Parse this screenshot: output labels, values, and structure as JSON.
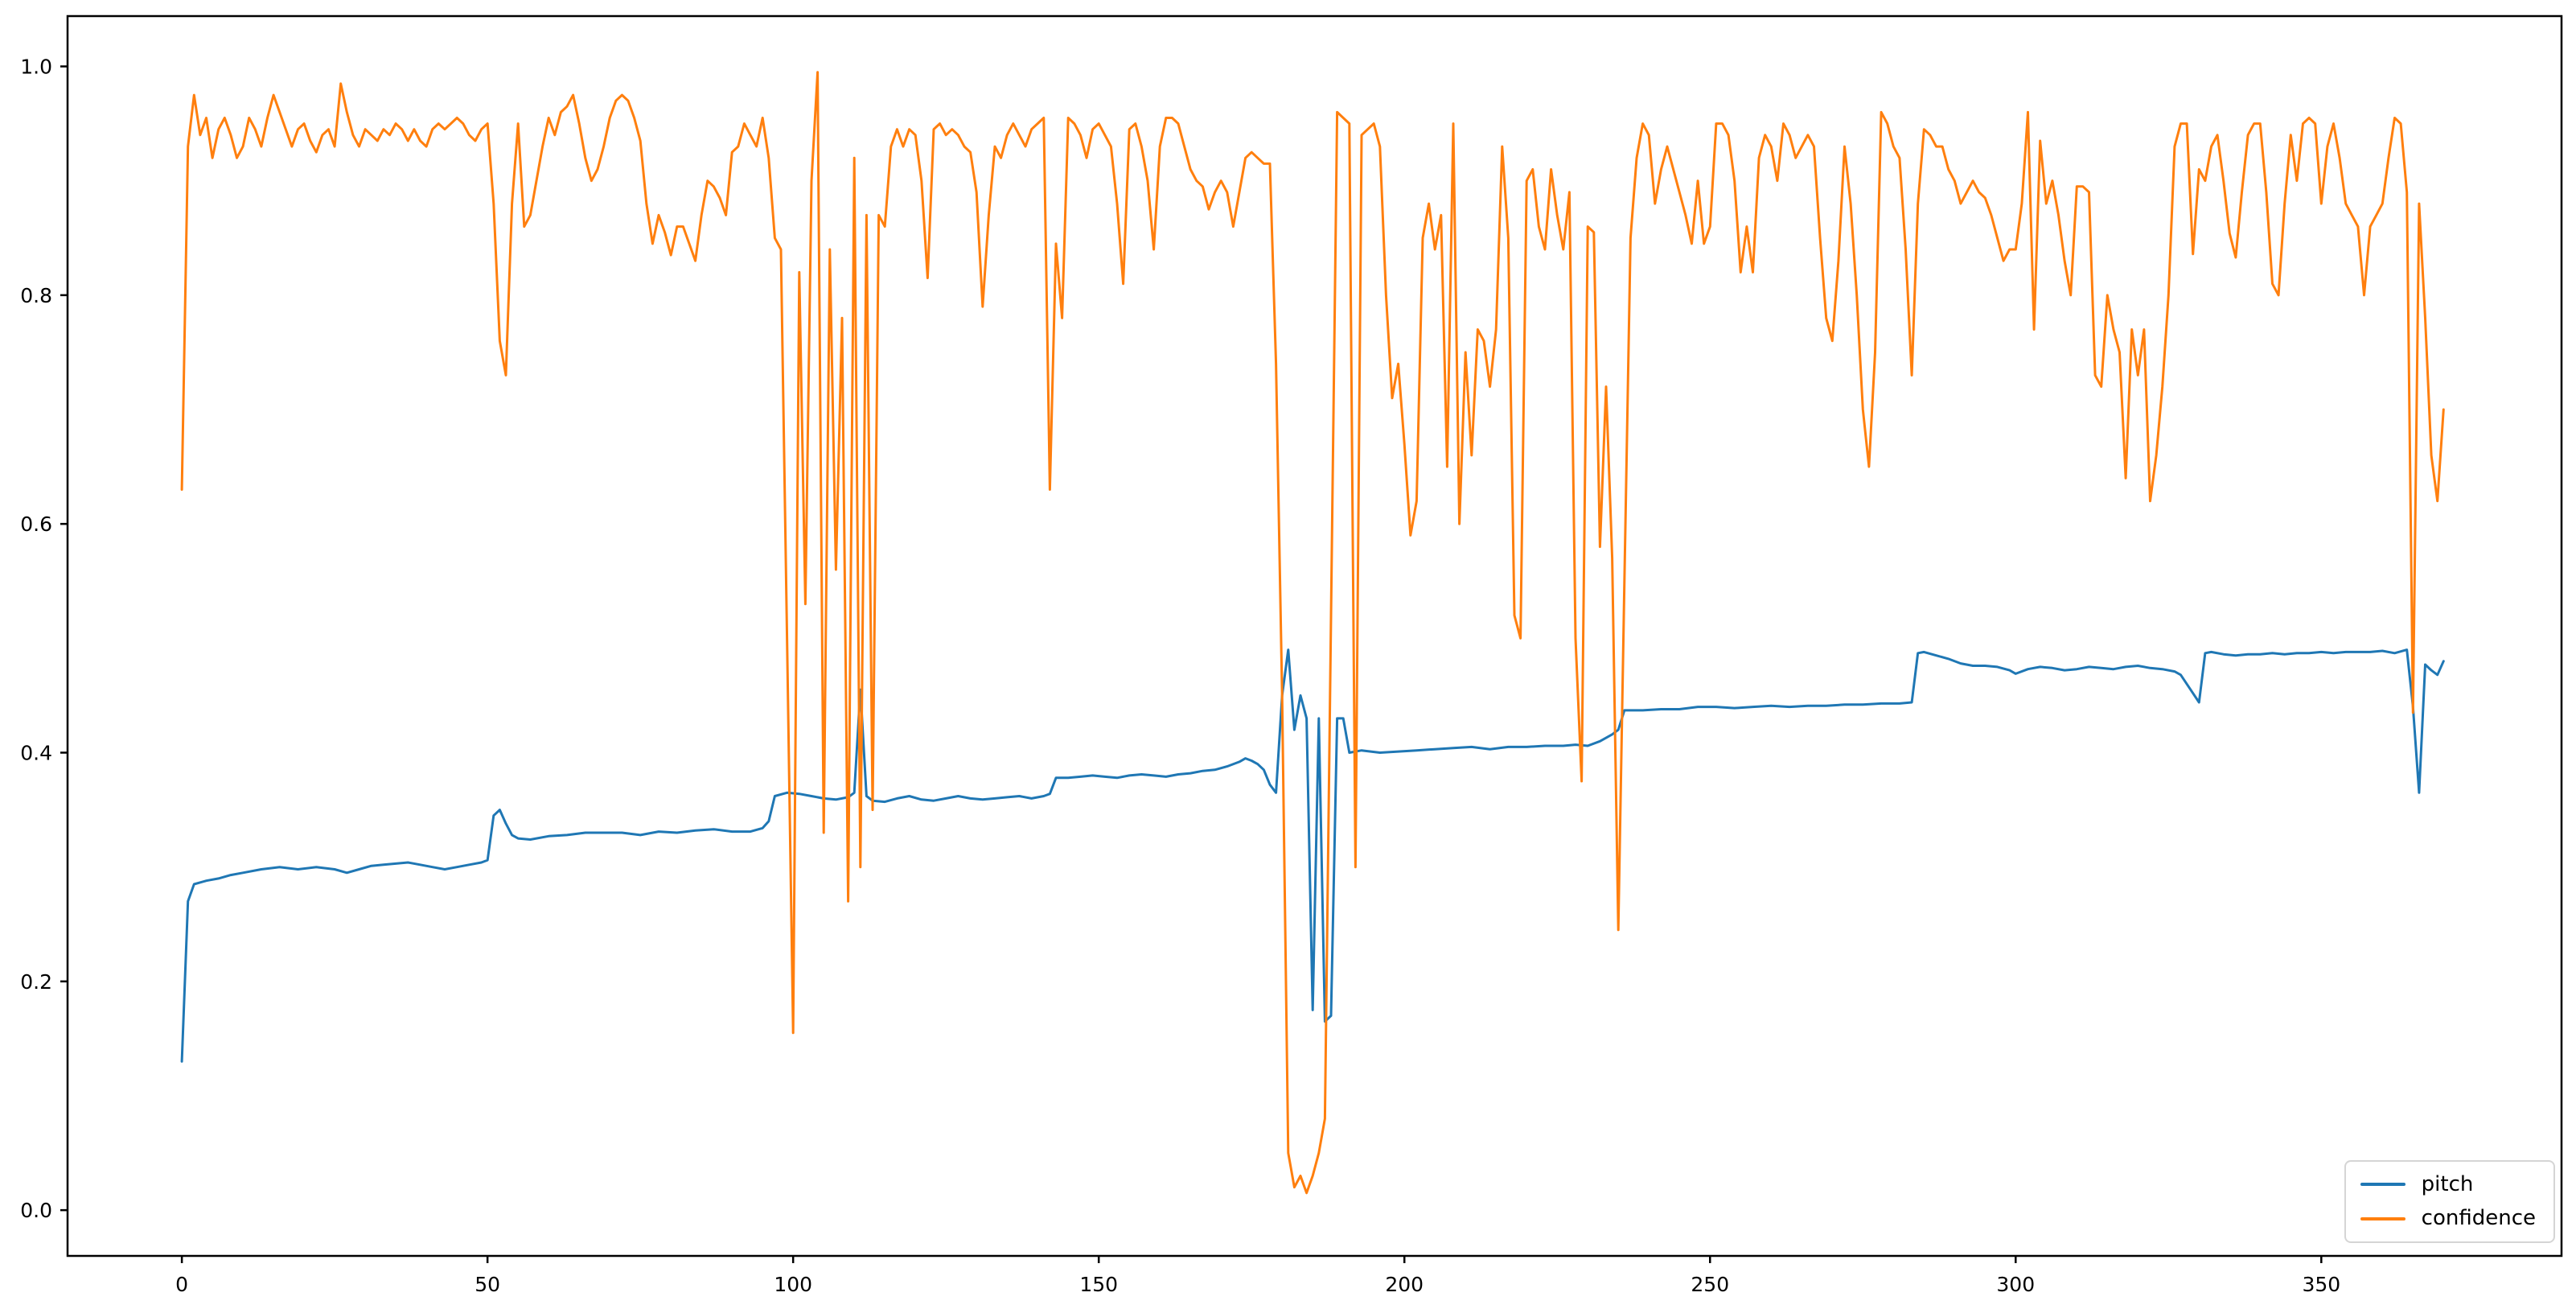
{
  "figure": {
    "background": "#ffffff",
    "frame_color": "#000000",
    "tick_color": "#000000"
  },
  "chart_data": {
    "type": "line",
    "title": "",
    "xlabel": "",
    "ylabel": "",
    "grid": false,
    "xlim": [
      -18.7,
      389.3
    ],
    "ylim": [
      -0.04,
      1.044
    ],
    "x_ticks": [
      0,
      50,
      100,
      150,
      200,
      250,
      300,
      350
    ],
    "x_tick_labels": [
      "0",
      "50",
      "100",
      "150",
      "200",
      "250",
      "300",
      "350"
    ],
    "y_ticks": [
      0.0,
      0.2,
      0.4,
      0.6,
      0.8,
      1.0
    ],
    "y_tick_labels": [
      "0.0",
      "0.2",
      "0.4",
      "0.6",
      "0.8",
      "1.0"
    ],
    "legend": {
      "position": "lower right",
      "entries": [
        {
          "label": "pitch",
          "color": "#1f77b4"
        },
        {
          "label": "confidence",
          "color": "#ff7f0e"
        }
      ]
    },
    "series": [
      {
        "name": "pitch",
        "color": "#1f77b4",
        "points": [
          [
            0,
            0.13
          ],
          [
            1,
            0.27
          ],
          [
            2,
            0.285
          ],
          [
            4,
            0.288
          ],
          [
            6,
            0.29
          ],
          [
            8,
            0.293
          ],
          [
            10,
            0.295
          ],
          [
            13,
            0.298
          ],
          [
            16,
            0.3
          ],
          [
            19,
            0.298
          ],
          [
            22,
            0.3
          ],
          [
            25,
            0.298
          ],
          [
            27,
            0.295
          ],
          [
            29,
            0.298
          ],
          [
            31,
            0.301
          ],
          [
            33,
            0.302
          ],
          [
            35,
            0.303
          ],
          [
            37,
            0.304
          ],
          [
            39,
            0.302
          ],
          [
            41,
            0.3
          ],
          [
            43,
            0.298
          ],
          [
            45,
            0.3
          ],
          [
            47,
            0.302
          ],
          [
            49,
            0.304
          ],
          [
            50,
            0.306
          ],
          [
            51,
            0.345
          ],
          [
            52,
            0.35
          ],
          [
            53,
            0.338
          ],
          [
            54,
            0.328
          ],
          [
            55,
            0.325
          ],
          [
            57,
            0.324
          ],
          [
            60,
            0.327
          ],
          [
            63,
            0.328
          ],
          [
            66,
            0.33
          ],
          [
            69,
            0.33
          ],
          [
            72,
            0.33
          ],
          [
            75,
            0.328
          ],
          [
            78,
            0.331
          ],
          [
            81,
            0.33
          ],
          [
            84,
            0.332
          ],
          [
            87,
            0.333
          ],
          [
            90,
            0.331
          ],
          [
            93,
            0.331
          ],
          [
            95,
            0.334
          ],
          [
            96,
            0.34
          ],
          [
            97,
            0.362
          ],
          [
            99,
            0.365
          ],
          [
            101,
            0.364
          ],
          [
            103,
            0.362
          ],
          [
            105,
            0.36
          ],
          [
            107,
            0.359
          ],
          [
            109,
            0.361
          ],
          [
            110,
            0.365
          ],
          [
            111,
            0.455
          ],
          [
            112,
            0.362
          ],
          [
            113,
            0.358
          ],
          [
            115,
            0.357
          ],
          [
            117,
            0.36
          ],
          [
            119,
            0.362
          ],
          [
            121,
            0.359
          ],
          [
            123,
            0.358
          ],
          [
            125,
            0.36
          ],
          [
            127,
            0.362
          ],
          [
            129,
            0.36
          ],
          [
            131,
            0.359
          ],
          [
            133,
            0.36
          ],
          [
            135,
            0.361
          ],
          [
            137,
            0.362
          ],
          [
            139,
            0.36
          ],
          [
            141,
            0.362
          ],
          [
            142,
            0.364
          ],
          [
            143,
            0.378
          ],
          [
            145,
            0.378
          ],
          [
            147,
            0.379
          ],
          [
            149,
            0.38
          ],
          [
            151,
            0.379
          ],
          [
            153,
            0.378
          ],
          [
            155,
            0.38
          ],
          [
            157,
            0.381
          ],
          [
            159,
            0.38
          ],
          [
            161,
            0.379
          ],
          [
            163,
            0.381
          ],
          [
            165,
            0.382
          ],
          [
            167,
            0.384
          ],
          [
            169,
            0.385
          ],
          [
            171,
            0.388
          ],
          [
            173,
            0.392
          ],
          [
            174,
            0.395
          ],
          [
            175,
            0.393
          ],
          [
            176,
            0.39
          ],
          [
            177,
            0.385
          ],
          [
            178,
            0.372
          ],
          [
            179,
            0.365
          ],
          [
            180,
            0.45
          ],
          [
            181,
            0.49
          ],
          [
            182,
            0.42
          ],
          [
            183,
            0.45
          ],
          [
            184,
            0.43
          ],
          [
            185,
            0.175
          ],
          [
            186,
            0.43
          ],
          [
            187,
            0.165
          ],
          [
            188,
            0.17
          ],
          [
            189,
            0.43
          ],
          [
            190,
            0.43
          ],
          [
            191,
            0.4
          ],
          [
            193,
            0.402
          ],
          [
            196,
            0.4
          ],
          [
            199,
            0.401
          ],
          [
            202,
            0.402
          ],
          [
            205,
            0.403
          ],
          [
            208,
            0.404
          ],
          [
            211,
            0.405
          ],
          [
            214,
            0.403
          ],
          [
            217,
            0.405
          ],
          [
            220,
            0.405
          ],
          [
            223,
            0.406
          ],
          [
            226,
            0.406
          ],
          [
            228,
            0.407
          ],
          [
            230,
            0.406
          ],
          [
            232,
            0.41
          ],
          [
            234,
            0.416
          ],
          [
            235,
            0.42
          ],
          [
            236,
            0.437
          ],
          [
            239,
            0.437
          ],
          [
            242,
            0.438
          ],
          [
            245,
            0.438
          ],
          [
            248,
            0.44
          ],
          [
            251,
            0.44
          ],
          [
            254,
            0.439
          ],
          [
            257,
            0.44
          ],
          [
            260,
            0.441
          ],
          [
            263,
            0.44
          ],
          [
            266,
            0.441
          ],
          [
            269,
            0.441
          ],
          [
            272,
            0.442
          ],
          [
            275,
            0.442
          ],
          [
            278,
            0.443
          ],
          [
            281,
            0.443
          ],
          [
            283,
            0.444
          ],
          [
            284,
            0.487
          ],
          [
            285,
            0.488
          ],
          [
            287,
            0.485
          ],
          [
            289,
            0.482
          ],
          [
            291,
            0.478
          ],
          [
            293,
            0.476
          ],
          [
            295,
            0.476
          ],
          [
            297,
            0.475
          ],
          [
            299,
            0.472
          ],
          [
            300,
            0.469
          ],
          [
            302,
            0.473
          ],
          [
            304,
            0.475
          ],
          [
            306,
            0.474
          ],
          [
            308,
            0.472
          ],
          [
            310,
            0.473
          ],
          [
            312,
            0.475
          ],
          [
            314,
            0.474
          ],
          [
            316,
            0.473
          ],
          [
            318,
            0.475
          ],
          [
            320,
            0.476
          ],
          [
            322,
            0.474
          ],
          [
            324,
            0.473
          ],
          [
            326,
            0.471
          ],
          [
            327,
            0.468
          ],
          [
            328,
            0.46
          ],
          [
            329,
            0.452
          ],
          [
            330,
            0.444
          ],
          [
            331,
            0.487
          ],
          [
            332,
            0.488
          ],
          [
            334,
            0.486
          ],
          [
            336,
            0.485
          ],
          [
            338,
            0.486
          ],
          [
            340,
            0.486
          ],
          [
            342,
            0.487
          ],
          [
            344,
            0.486
          ],
          [
            346,
            0.487
          ],
          [
            348,
            0.487
          ],
          [
            350,
            0.488
          ],
          [
            352,
            0.487
          ],
          [
            354,
            0.488
          ],
          [
            356,
            0.488
          ],
          [
            358,
            0.488
          ],
          [
            360,
            0.489
          ],
          [
            362,
            0.487
          ],
          [
            364,
            0.49
          ],
          [
            365,
            0.44
          ],
          [
            366,
            0.365
          ],
          [
            367,
            0.477
          ],
          [
            368,
            0.472
          ],
          [
            369,
            0.468
          ],
          [
            370,
            0.48
          ]
        ]
      },
      {
        "name": "confidence",
        "color": "#ff7f0e",
        "x_start": 0,
        "values": [
          0.63,
          0.93,
          0.975,
          0.94,
          0.955,
          0.92,
          0.945,
          0.955,
          0.94,
          0.92,
          0.93,
          0.955,
          0.945,
          0.93,
          0.955,
          0.975,
          0.96,
          0.945,
          0.93,
          0.945,
          0.95,
          0.935,
          0.925,
          0.94,
          0.945,
          0.93,
          0.985,
          0.96,
          0.94,
          0.93,
          0.945,
          0.94,
          0.935,
          0.945,
          0.94,
          0.95,
          0.945,
          0.935,
          0.945,
          0.935,
          0.93,
          0.945,
          0.95,
          0.945,
          0.95,
          0.955,
          0.95,
          0.94,
          0.935,
          0.945,
          0.95,
          0.88,
          0.76,
          0.73,
          0.88,
          0.95,
          0.86,
          0.87,
          0.9,
          0.93,
          0.955,
          0.94,
          0.96,
          0.965,
          0.975,
          0.95,
          0.92,
          0.9,
          0.91,
          0.93,
          0.955,
          0.97,
          0.975,
          0.97,
          0.955,
          0.935,
          0.88,
          0.845,
          0.87,
          0.855,
          0.835,
          0.86,
          0.86,
          0.845,
          0.83,
          0.87,
          0.9,
          0.895,
          0.885,
          0.87,
          0.925,
          0.93,
          0.95,
          0.94,
          0.93,
          0.955,
          0.92,
          0.85,
          0.84,
          0.5,
          0.155,
          0.82,
          0.53,
          0.9,
          0.995,
          0.33,
          0.84,
          0.56,
          0.78,
          0.27,
          0.92,
          0.3,
          0.87,
          0.35,
          0.87,
          0.86,
          0.93,
          0.945,
          0.93,
          0.945,
          0.94,
          0.9,
          0.815,
          0.945,
          0.95,
          0.94,
          0.945,
          0.94,
          0.93,
          0.925,
          0.89,
          0.79,
          0.87,
          0.93,
          0.92,
          0.94,
          0.95,
          0.94,
          0.93,
          0.945,
          0.95,
          0.955,
          0.63,
          0.845,
          0.78,
          0.955,
          0.95,
          0.94,
          0.92,
          0.945,
          0.95,
          0.94,
          0.93,
          0.88,
          0.81,
          0.945,
          0.95,
          0.93,
          0.9,
          0.84,
          0.93,
          0.955,
          0.955,
          0.95,
          0.93,
          0.91,
          0.9,
          0.895,
          0.875,
          0.89,
          0.9,
          0.89,
          0.86,
          0.89,
          0.92,
          0.925,
          0.92,
          0.915,
          0.915,
          0.74,
          0.45,
          0.05,
          0.02,
          0.03,
          0.015,
          0.03,
          0.05,
          0.08,
          0.52,
          0.96,
          0.955,
          0.95,
          0.3,
          0.94,
          0.945,
          0.95,
          0.93,
          0.8,
          0.71,
          0.74,
          0.67,
          0.59,
          0.62,
          0.85,
          0.88,
          0.84,
          0.87,
          0.65,
          0.95,
          0.6,
          0.75,
          0.66,
          0.77,
          0.76,
          0.72,
          0.77,
          0.93,
          0.85,
          0.52,
          0.5,
          0.9,
          0.91,
          0.86,
          0.84,
          0.91,
          0.87,
          0.84,
          0.89,
          0.5,
          0.375,
          0.86,
          0.855,
          0.58,
          0.72,
          0.57,
          0.245,
          0.55,
          0.85,
          0.92,
          0.95,
          0.94,
          0.88,
          0.91,
          0.93,
          0.91,
          0.89,
          0.87,
          0.845,
          0.9,
          0.845,
          0.86,
          0.95,
          0.95,
          0.94,
          0.9,
          0.82,
          0.86,
          0.82,
          0.92,
          0.94,
          0.93,
          0.9,
          0.95,
          0.94,
          0.92,
          0.93,
          0.94,
          0.93,
          0.85,
          0.78,
          0.76,
          0.83,
          0.93,
          0.88,
          0.8,
          0.7,
          0.65,
          0.75,
          0.96,
          0.95,
          0.93,
          0.92,
          0.84,
          0.73,
          0.88,
          0.945,
          0.94,
          0.93,
          0.93,
          0.91,
          0.9,
          0.88,
          0.89,
          0.9,
          0.89,
          0.885,
          0.87,
          0.85,
          0.83,
          0.84,
          0.84,
          0.88,
          0.96,
          0.77,
          0.935,
          0.88,
          0.9,
          0.87,
          0.83,
          0.8,
          0.895,
          0.895,
          0.89,
          0.73,
          0.72,
          0.8,
          0.77,
          0.75,
          0.64,
          0.77,
          0.73,
          0.77,
          0.62,
          0.66,
          0.72,
          0.8,
          0.93,
          0.95,
          0.95,
          0.836,
          0.91,
          0.9,
          0.93,
          0.94,
          0.9,
          0.854,
          0.833,
          0.89,
          0.94,
          0.95,
          0.95,
          0.89,
          0.81,
          0.8,
          0.88,
          0.94,
          0.9,
          0.95,
          0.955,
          0.95,
          0.88,
          0.93,
          0.95,
          0.92,
          0.88,
          0.87,
          0.86,
          0.8,
          0.86,
          0.87,
          0.88,
          0.92,
          0.955,
          0.95,
          0.89,
          0.435,
          0.88,
          0.78,
          0.66,
          0.62,
          0.7
        ]
      }
    ]
  }
}
